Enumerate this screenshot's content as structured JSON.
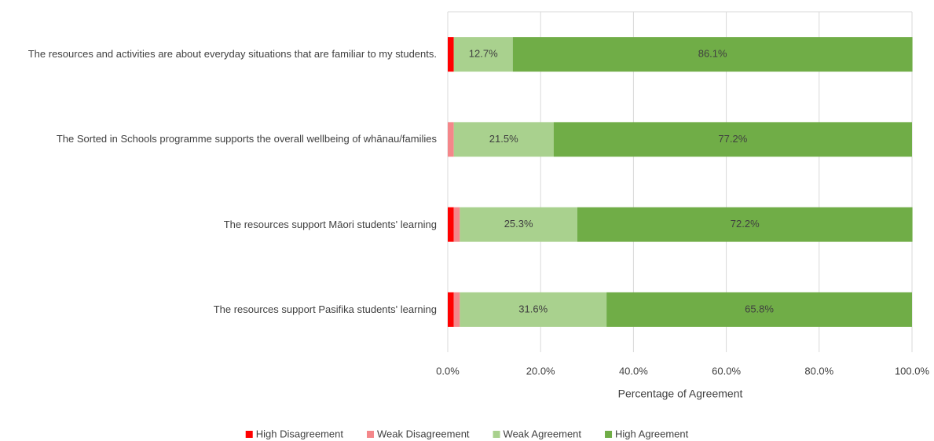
{
  "chart_data": {
    "type": "stacked-bar-horizontal",
    "categories": [
      "The resources and activities are about everyday situations that are familiar to my students.",
      "The Sorted in Schools programme supports the overall wellbeing of whānau/families",
      "The resources support Māori students' learning",
      "The resources support Pasifika students' learning"
    ],
    "series": [
      {
        "name": "High Disagreement",
        "color": "#ff0000",
        "values": [
          1.3,
          0,
          1.3,
          1.3
        ],
        "value_labels": [
          null,
          null,
          null,
          null
        ]
      },
      {
        "name": "Weak Disagreement",
        "color": "#f4878a",
        "values": [
          0,
          1.3,
          1.3,
          1.3
        ],
        "value_labels": [
          null,
          null,
          null,
          null
        ]
      },
      {
        "name": "Weak Agreement",
        "color": "#a9d18e",
        "values": [
          12.7,
          21.5,
          25.3,
          31.6
        ],
        "value_labels": [
          "12.7%",
          "21.5%",
          "25.3%",
          "31.6%"
        ]
      },
      {
        "name": "High Agreement",
        "color": "#70ad47",
        "values": [
          86.1,
          77.2,
          72.2,
          65.8
        ],
        "value_labels": [
          "86.1%",
          "77.2%",
          "72.2%",
          "65.8%"
        ]
      }
    ],
    "xlabel": "Percentage of Agreement",
    "xlim": [
      0,
      100
    ],
    "xticks": [
      {
        "value": 0,
        "label": "0.0%"
      },
      {
        "value": 20,
        "label": "20.0%"
      },
      {
        "value": 40,
        "label": "40.0%"
      },
      {
        "value": 60,
        "label": "60.0%"
      },
      {
        "value": 80,
        "label": "80.0%"
      },
      {
        "value": 100,
        "label": "100.0%"
      }
    ],
    "grid": true,
    "legend": "bottom"
  }
}
